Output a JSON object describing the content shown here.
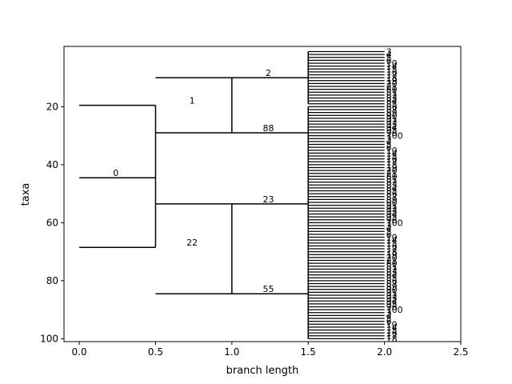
{
  "chart_data": {
    "type": "tree",
    "xlabel": "branch length",
    "ylabel": "taxa",
    "xlim": [
      -0.1,
      2.5
    ],
    "ylim": [
      101,
      -0.8
    ],
    "x_ticks": [
      0.0,
      0.5,
      1.0,
      1.5,
      2.0,
      2.5
    ],
    "x_tick_labels": [
      "0.0",
      "0.5",
      "1.0",
      "1.5",
      "2.0",
      "2.5"
    ],
    "y_ticks": [
      20,
      40,
      60,
      80,
      100
    ],
    "y_tick_labels": [
      "20",
      "40",
      "60",
      "80",
      "100"
    ],
    "internal_nodes": [
      {
        "label": "0",
        "x": 0.0,
        "y": 44.5,
        "child_x": 0.5,
        "child_y": [
          19.5,
          68.5
        ]
      },
      {
        "label": "1",
        "x": 0.5,
        "y": 19.5,
        "child_x": 1.0,
        "child_y": [
          10.0,
          29.0
        ]
      },
      {
        "label": "22",
        "x": 0.5,
        "y": 68.5,
        "child_x": 1.0,
        "child_y": [
          53.5,
          84.5
        ]
      },
      {
        "label": "2",
        "x": 1.0,
        "y": 10.0,
        "child_x": 1.5,
        "child_range": [
          1,
          19
        ]
      },
      {
        "label": "88",
        "x": 1.0,
        "y": 29.0,
        "child_x": 1.5,
        "child_range": [
          20,
          38
        ]
      },
      {
        "label": "23",
        "x": 1.0,
        "y": 53.5,
        "child_x": 1.5,
        "child_range": [
          38,
          69
        ]
      },
      {
        "label": "55",
        "x": 1.0,
        "y": 84.5,
        "child_x": 1.5,
        "child_range": [
          69,
          100
        ]
      }
    ],
    "leaf_x": 2.0,
    "leaf_y_range": [
      1,
      100
    ],
    "leaf_labels_visible": [
      "3",
      "4",
      "5",
      "6",
      "10",
      "14",
      "15",
      "16",
      "17",
      "18",
      "19",
      "20",
      "21",
      "80",
      "81",
      "82",
      "83",
      "84",
      "85",
      "86",
      "87",
      "89",
      "90",
      "91",
      "92",
      "93",
      "94",
      "95",
      "96",
      "100"
    ]
  }
}
